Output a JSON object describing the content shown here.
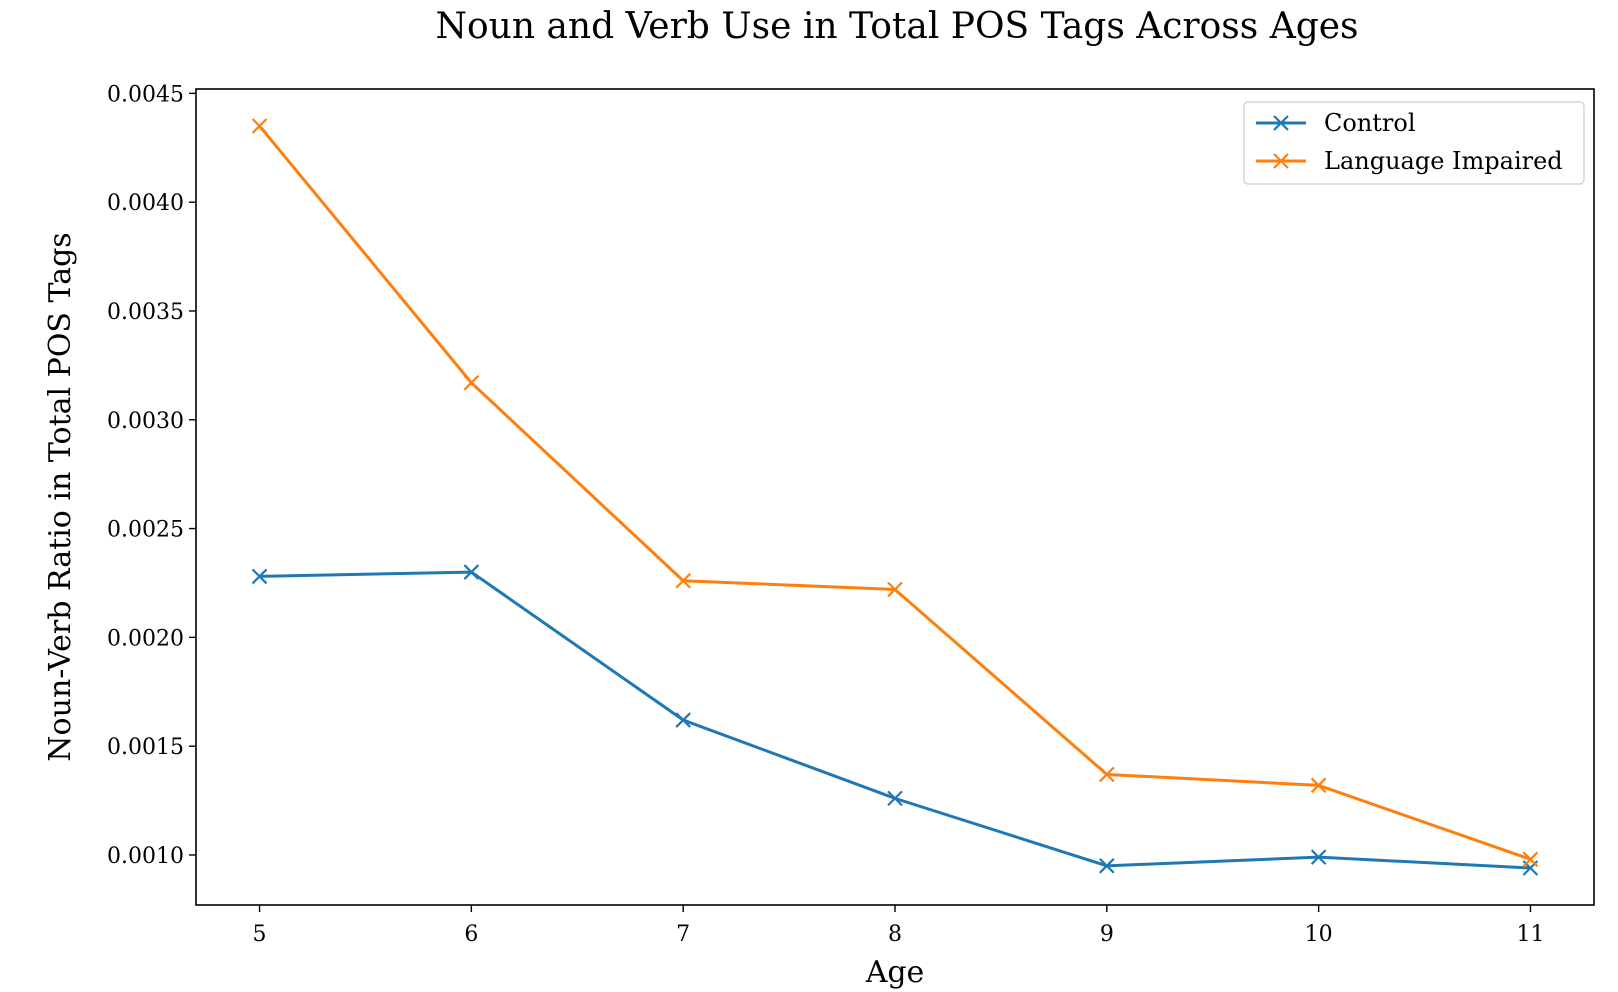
{
  "chart_data": {
    "type": "line",
    "title": "Noun and Verb Use in Total POS Tags Across Ages",
    "xlabel": "Age",
    "ylabel": "Noun-Verb Ratio in Total POS Tags",
    "x": [
      5,
      6,
      7,
      8,
      9,
      10,
      11
    ],
    "x_tick_labels": [
      "5",
      "6",
      "7",
      "8",
      "9",
      "10",
      "11"
    ],
    "xlim": [
      4.7,
      11.3
    ],
    "ylim": [
      0.00077,
      0.00452
    ],
    "y_ticks": [
      0.001,
      0.0015,
      0.002,
      0.0025,
      0.003,
      0.0035,
      0.004,
      0.0045
    ],
    "y_tick_labels": [
      "0.0010",
      "0.0015",
      "0.0020",
      "0.0025",
      "0.0030",
      "0.0035",
      "0.0040",
      "0.0045"
    ],
    "grid": false,
    "legend_position": "top-right",
    "marker": "x",
    "series": [
      {
        "name": "Control",
        "color": "#1f77b4",
        "values": [
          0.00228,
          0.0023,
          0.00162,
          0.00126,
          0.00095,
          0.00099,
          0.00094
        ]
      },
      {
        "name": "Language Impaired",
        "color": "#ff7f0e",
        "values": [
          0.00435,
          0.00317,
          0.00226,
          0.00222,
          0.00137,
          0.00132,
          0.00098
        ]
      }
    ]
  }
}
